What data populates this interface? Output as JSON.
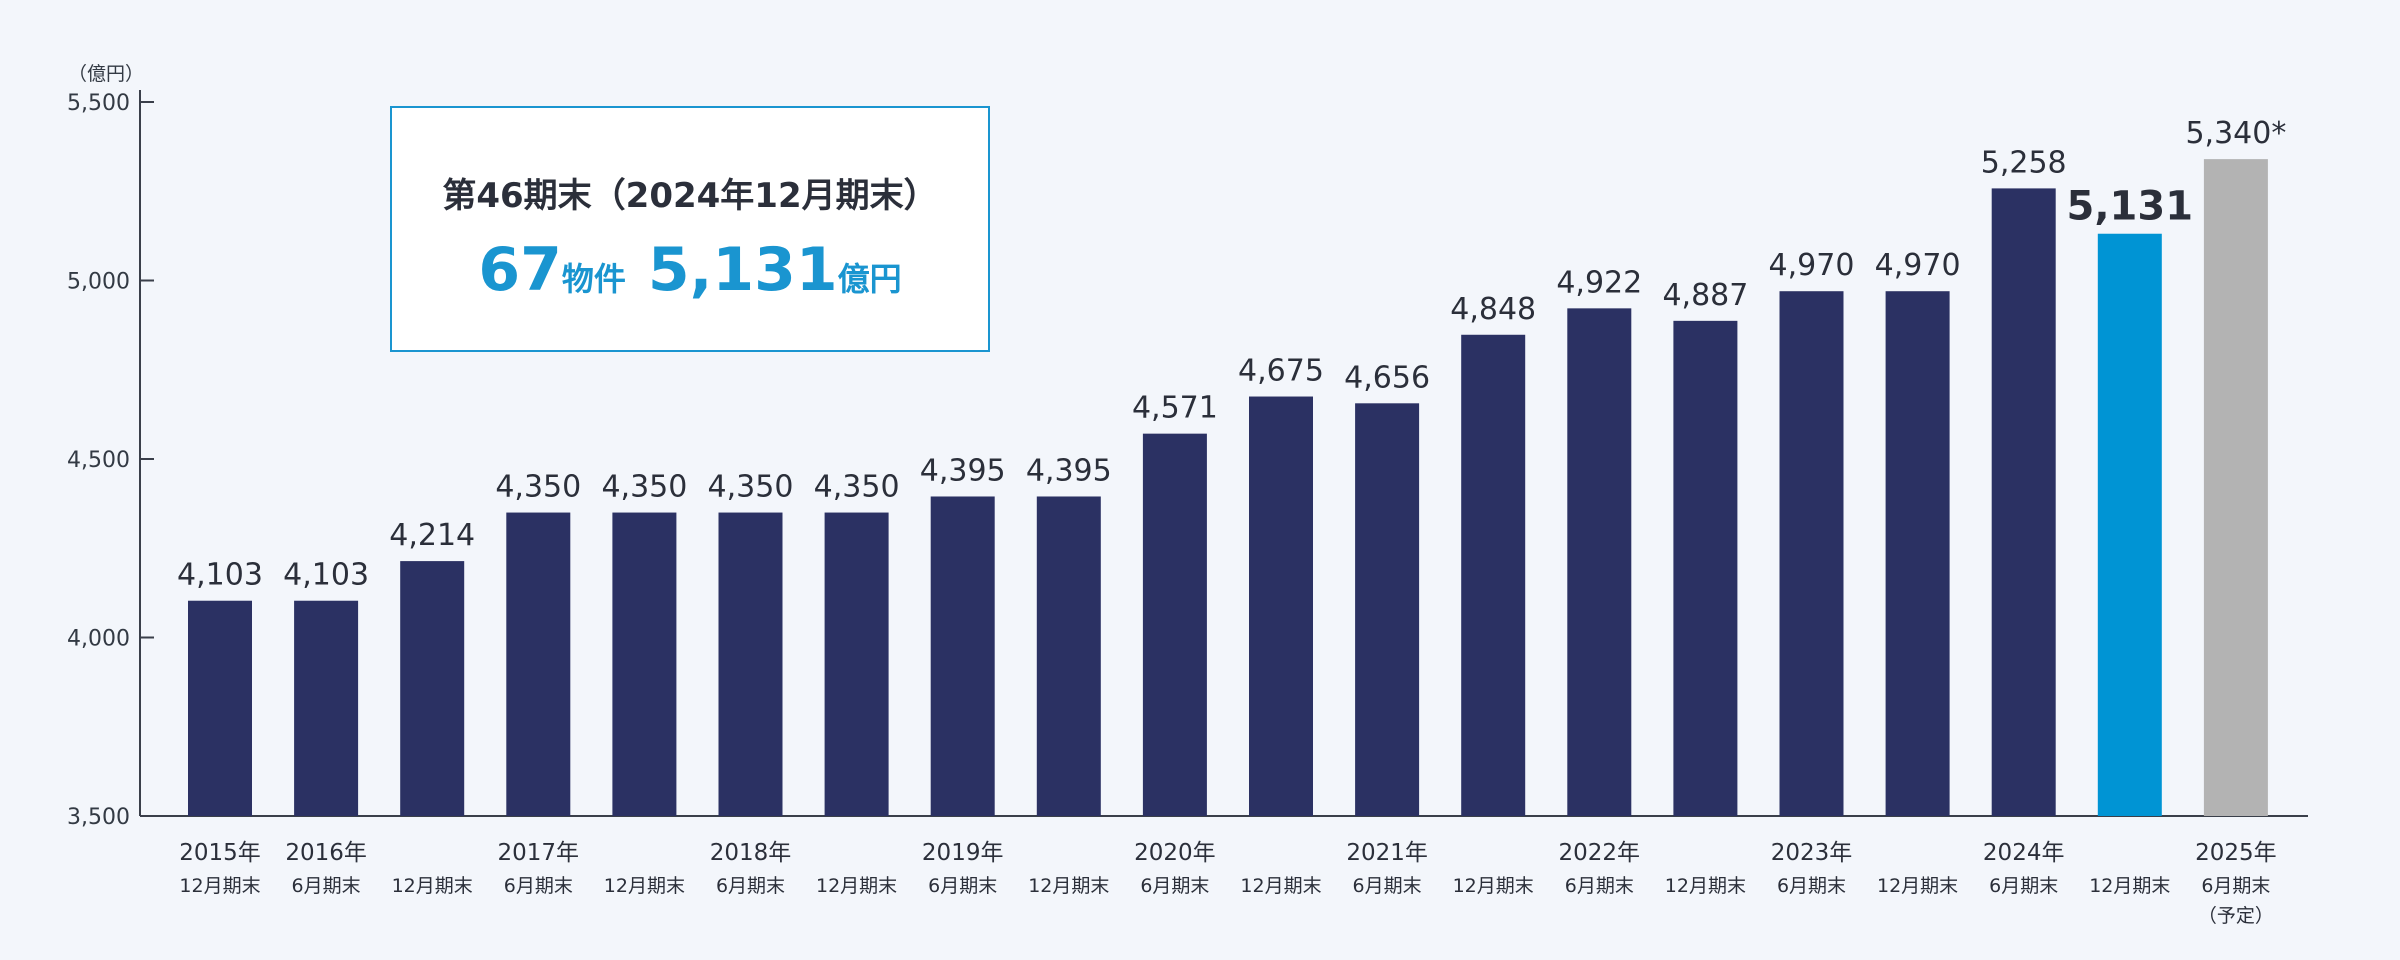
{
  "chart_data": {
    "type": "bar",
    "unit_label": "（億円）",
    "ylim": [
      3500,
      5500
    ],
    "y_ticks": [
      3500,
      4000,
      4500,
      5000,
      5500
    ],
    "y_tick_labels": [
      "3,500",
      "4,000",
      "4,500",
      "5,000",
      "5,500"
    ],
    "categories": [
      {
        "year": "2015年",
        "period": "12月期末",
        "value": 4103,
        "label": "4,103",
        "color": "#2b3163"
      },
      {
        "year": "2016年",
        "period": "6月期末",
        "value": 4103,
        "label": "4,103",
        "color": "#2b3163"
      },
      {
        "year": "",
        "period": "12月期末",
        "value": 4214,
        "label": "4,214",
        "color": "#2b3163"
      },
      {
        "year": "2017年",
        "period": "6月期末",
        "value": 4350,
        "label": "4,350",
        "color": "#2b3163"
      },
      {
        "year": "",
        "period": "12月期末",
        "value": 4350,
        "label": "4,350",
        "color": "#2b3163"
      },
      {
        "year": "2018年",
        "period": "6月期末",
        "value": 4350,
        "label": "4,350",
        "color": "#2b3163"
      },
      {
        "year": "",
        "period": "12月期末",
        "value": 4350,
        "label": "4,350",
        "color": "#2b3163"
      },
      {
        "year": "2019年",
        "period": "6月期末",
        "value": 4395,
        "label": "4,395",
        "color": "#2b3163"
      },
      {
        "year": "",
        "period": "12月期末",
        "value": 4395,
        "label": "4,395",
        "color": "#2b3163"
      },
      {
        "year": "2020年",
        "period": "6月期末",
        "value": 4571,
        "label": "4,571",
        "color": "#2b3163"
      },
      {
        "year": "",
        "period": "12月期末",
        "value": 4675,
        "label": "4,675",
        "color": "#2b3163"
      },
      {
        "year": "2021年",
        "period": "6月期末",
        "value": 4656,
        "label": "4,656",
        "color": "#2b3163"
      },
      {
        "year": "",
        "period": "12月期末",
        "value": 4848,
        "label": "4,848",
        "color": "#2b3163"
      },
      {
        "year": "2022年",
        "period": "6月期末",
        "value": 4922,
        "label": "4,922",
        "color": "#2b3163"
      },
      {
        "year": "",
        "period": "12月期末",
        "value": 4887,
        "label": "4,887",
        "color": "#2b3163"
      },
      {
        "year": "2023年",
        "period": "6月期末",
        "value": 4970,
        "label": "4,970",
        "color": "#2b3163"
      },
      {
        "year": "",
        "period": "12月期末",
        "value": 4970,
        "label": "4,970",
        "color": "#2b3163"
      },
      {
        "year": "2024年",
        "period": "6月期末",
        "value": 5258,
        "label": "5,258",
        "color": "#2b3163"
      },
      {
        "year": "",
        "period": "12月期末",
        "value": 5131,
        "label": "5,131",
        "color": "#0094d4",
        "highlight": true
      },
      {
        "year": "2025年",
        "period": "6月期末",
        "note": "（予定）",
        "value": 5340,
        "label": "5,340*",
        "color": "#b3b3b3"
      }
    ]
  },
  "info_box": {
    "title": "第46期末（2024年12月期末）",
    "properties_value": "67",
    "properties_unit": "物件",
    "amount_value": "5,131",
    "amount_unit": "億円"
  }
}
